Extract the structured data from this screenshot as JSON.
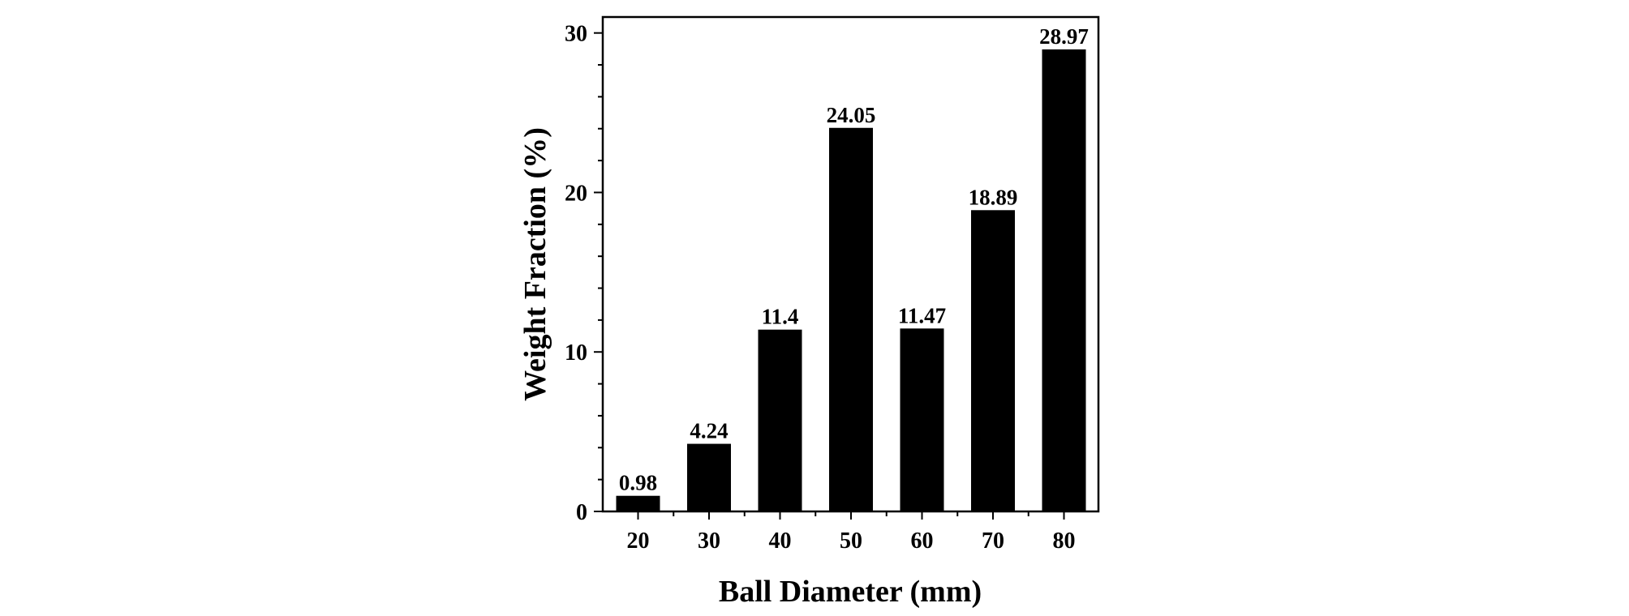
{
  "chart_data": {
    "type": "bar",
    "categories": [
      "20",
      "30",
      "40",
      "50",
      "60",
      "70",
      "80"
    ],
    "values": [
      0.98,
      4.24,
      11.4,
      24.05,
      11.47,
      18.89,
      28.97
    ],
    "data_labels": [
      "0.98",
      "4.24",
      "11.4",
      "24.05",
      "11.47",
      "18.89",
      "28.97"
    ],
    "xlabel": "Ball Diameter (mm)",
    "ylabel": "Weight Fraction (%)",
    "ylim": [
      0,
      31
    ],
    "yticks": [
      "0",
      "10",
      "20",
      "30"
    ],
    "ytick_values": [
      0,
      10,
      20,
      30
    ],
    "y_minor_step": 2,
    "bar_color": "#000000",
    "grid": false,
    "legend": "none"
  }
}
